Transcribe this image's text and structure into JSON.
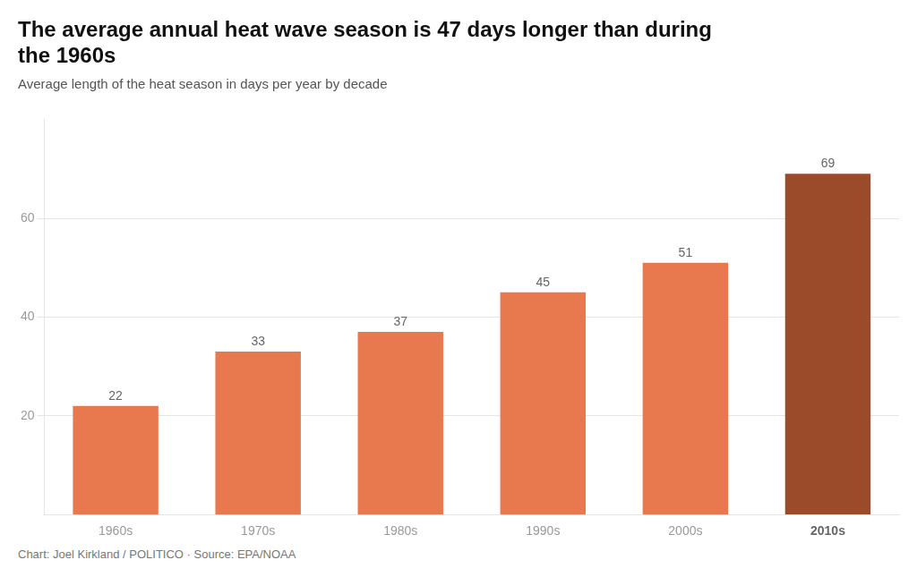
{
  "chart_data": {
    "type": "bar",
    "title": [
      "The average annual heat wave season is 47 days longer than during",
      "the 1960s"
    ],
    "subtitle": "Average length of the heat season in days per year by decade",
    "annotations": [
      "Chart: Joel Kirkland / POLITICO · Source: EPA/NOAA"
    ],
    "categories": [
      "1960s",
      "1970s",
      "1980s",
      "1990s",
      "2000s",
      "2010s"
    ],
    "values": [
      22,
      33,
      37,
      45,
      51,
      69
    ],
    "colors": [
      "#E8784D",
      "#E8784D",
      "#E8784D",
      "#E8784D",
      "#E8784D",
      "#9B4A2A"
    ],
    "ylim": [
      0,
      80
    ],
    "yticks": [
      20,
      40,
      60
    ],
    "grid": true,
    "data_labels": true
  }
}
